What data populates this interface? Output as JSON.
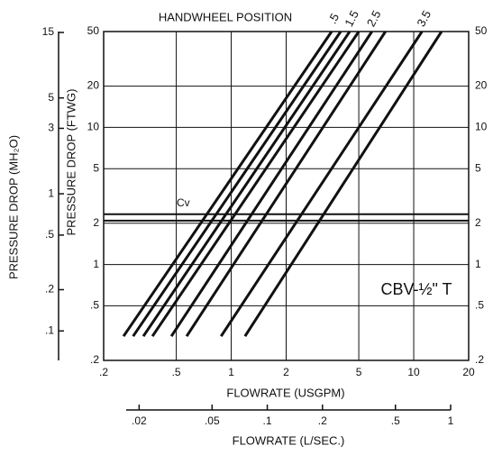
{
  "chart_data": {
    "type": "line",
    "title": "HANDWHEEL POSITION",
    "xlabel": "FLOWRATE (USGPM)",
    "x2label": "FLOWRATE (L/SEC.)",
    "ylabel": "PRESSURE DROP (FTWG)",
    "y2label": "PRESSURE DROP (MH₂O)",
    "log": true,
    "grid": true,
    "color": "#111111",
    "xlim": [
      0.2,
      20
    ],
    "xticks": [
      {
        "value": 0.2,
        "label": ".2"
      },
      {
        "value": 0.5,
        "label": ".5"
      },
      1,
      2,
      5,
      10,
      20
    ],
    "ylim": [
      0.2,
      50
    ],
    "yticks": [
      {
        "value": 0.2,
        "label": ".2"
      },
      {
        "value": 0.5,
        "label": ".5"
      },
      1,
      2,
      5,
      10,
      20,
      50
    ],
    "y2lim": [
      0.061,
      15.24
    ],
    "y2ticks": [
      {
        "value": 0.1,
        "label": ".1"
      },
      {
        "value": 0.2,
        "label": ".2"
      },
      {
        "value": 0.5,
        "label": ".5"
      },
      1,
      3,
      5,
      15
    ],
    "x2lim": [
      0.017,
      1
    ],
    "x2ticks": [
      {
        "value": 0.02,
        "label": ".02"
      },
      {
        "value": 0.05,
        "label": ".05"
      },
      {
        "value": 0.1,
        "label": ".1"
      },
      {
        "value": 0.2,
        "label": ".2"
      },
      {
        "value": 0.5,
        "label": ".5"
      },
      1
    ],
    "series": [
      {
        "x": [
          0.257,
          3.55
        ],
        "values": [
          0.3,
          50
        ]
      },
      {
        "x": [
          0.29,
          3.98
        ],
        "values": [
          0.3,
          50
        ]
      },
      {
        "x": [
          0.33,
          4.46
        ],
        "values": [
          0.3,
          50
        ]
      },
      {
        "x": [
          0.37,
          5.0
        ],
        "values": [
          0.3,
          50
        ]
      },
      {
        "x": [
          0.47,
          5.9
        ],
        "values": [
          0.3,
          50
        ]
      },
      {
        "x": [
          0.57,
          7.0
        ],
        "values": [
          0.3,
          50
        ]
      },
      {
        "x": [
          0.88,
          11.1
        ],
        "values": [
          0.3,
          50
        ]
      },
      {
        "x": [
          1.19,
          14.2
        ],
        "values": [
          0.3,
          50
        ]
      }
    ],
    "annotations": [
      {
        "text": ".5",
        "series": 0
      },
      {
        "text": "1.5",
        "series": 2
      },
      {
        "text": "2.5",
        "series": 4
      },
      {
        "text": "3.5",
        "series": 6
      }
    ],
    "reference_lines": {
      "label": "Cv",
      "values": [
        2.33,
        2.09
      ]
    },
    "box_label": "CBV-½\" T"
  }
}
